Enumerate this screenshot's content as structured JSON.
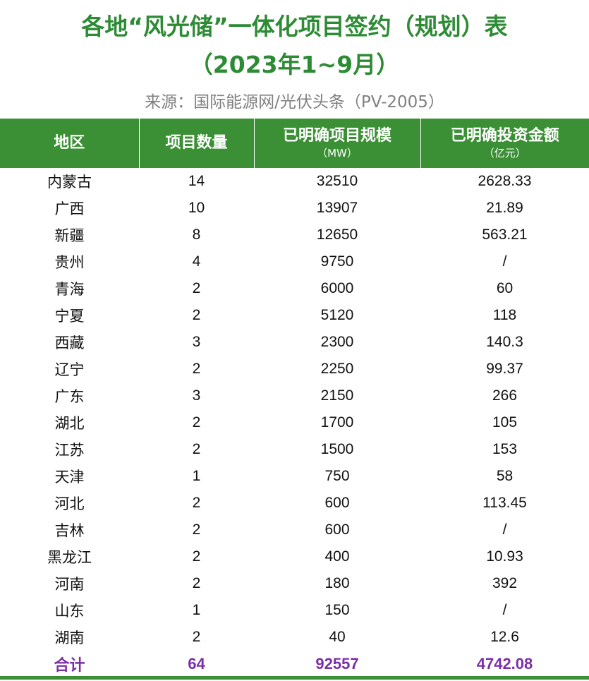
{
  "title_line1": "各地“风光储”一体化项目签约（规划）表",
  "title_line2": "（2023年1~9月）",
  "source": "来源：国际能源网/光伏头条（PV-2005）",
  "headers": {
    "region": "地区",
    "count": "项目数量",
    "scale": "已明确项目规模",
    "scale_unit": "（MW）",
    "invest": "已明确投资金额",
    "invest_unit": "（亿元）"
  },
  "rows": [
    {
      "region": "内蒙古",
      "count": "14",
      "scale": "32510",
      "invest": "2628.33"
    },
    {
      "region": "广西",
      "count": "10",
      "scale": "13907",
      "invest": "21.89"
    },
    {
      "region": "新疆",
      "count": "8",
      "scale": "12650",
      "invest": "563.21"
    },
    {
      "region": "贵州",
      "count": "4",
      "scale": "9750",
      "invest": "/"
    },
    {
      "region": "青海",
      "count": "2",
      "scale": "6000",
      "invest": "60"
    },
    {
      "region": "宁夏",
      "count": "2",
      "scale": "5120",
      "invest": "118"
    },
    {
      "region": "西藏",
      "count": "3",
      "scale": "2300",
      "invest": "140.3"
    },
    {
      "region": "辽宁",
      "count": "2",
      "scale": "2250",
      "invest": "99.37"
    },
    {
      "region": "广东",
      "count": "3",
      "scale": "2150",
      "invest": "266"
    },
    {
      "region": "湖北",
      "count": "2",
      "scale": "1700",
      "invest": "105"
    },
    {
      "region": "江苏",
      "count": "2",
      "scale": "1500",
      "invest": "153"
    },
    {
      "region": "天津",
      "count": "1",
      "scale": "750",
      "invest": "58"
    },
    {
      "region": "河北",
      "count": "2",
      "scale": "600",
      "invest": "113.45"
    },
    {
      "region": "吉林",
      "count": "2",
      "scale": "600",
      "invest": "/"
    },
    {
      "region": "黑龙江",
      "count": "2",
      "scale": "400",
      "invest": "10.93"
    },
    {
      "region": "河南",
      "count": "2",
      "scale": "180",
      "invest": "392"
    },
    {
      "region": "山东",
      "count": "1",
      "scale": "150",
      "invest": "/"
    },
    {
      "region": "湖南",
      "count": "2",
      "scale": "40",
      "invest": "12.6"
    }
  ],
  "total": {
    "region": "合计",
    "count": "64",
    "scale": "92557",
    "invest": "4742.08"
  },
  "colors": {
    "title_green": "#2e8b35",
    "header_green": "#3b8f34",
    "total_purple": "#7b2fa8",
    "source_gray": "#808080"
  }
}
